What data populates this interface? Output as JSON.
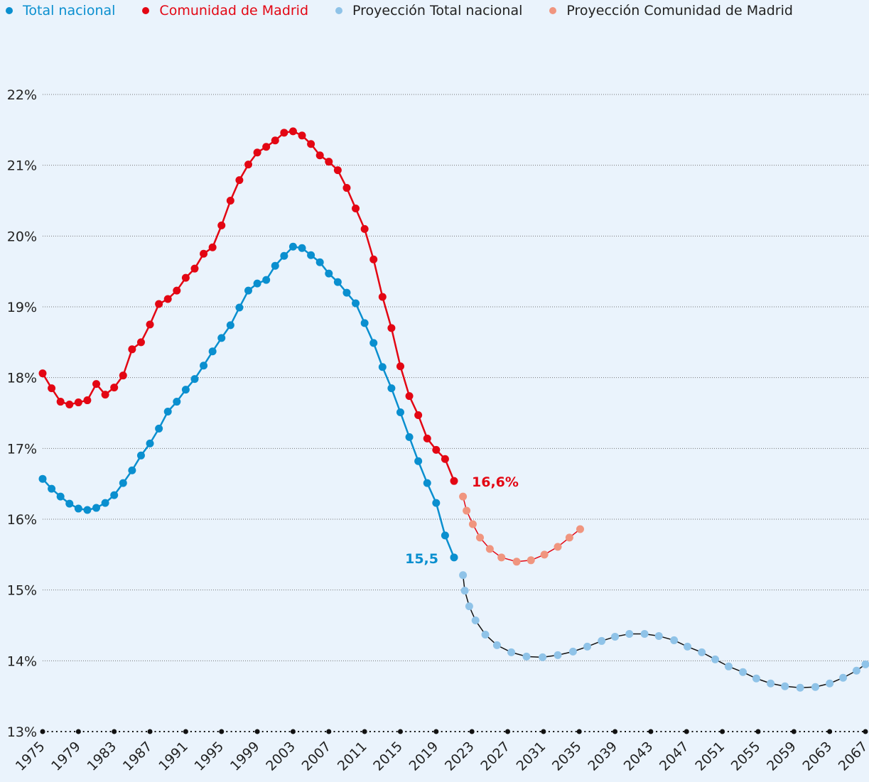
{
  "chart_data": {
    "type": "line",
    "xlim": [
      1975,
      2067
    ],
    "xticks": [
      1975,
      1979,
      1983,
      1987,
      1991,
      1995,
      1999,
      2003,
      2007,
      2011,
      2015,
      2019,
      2023,
      2027,
      2031,
      2035,
      2039,
      2043,
      2047,
      2051,
      2055,
      2059,
      2063,
      2067
    ],
    "ylim": [
      13,
      22
    ],
    "yticks": [
      {
        "value": 13,
        "label": "13%"
      },
      {
        "value": 14,
        "label": "14%"
      },
      {
        "value": 15,
        "label": "15%"
      },
      {
        "value": 16,
        "label": "16%"
      },
      {
        "value": 17,
        "label": "17%"
      },
      {
        "value": 18,
        "label": "18%"
      },
      {
        "value": 19,
        "label": "19%"
      },
      {
        "value": 20,
        "label": "20%"
      },
      {
        "value": 21,
        "label": "21%"
      },
      {
        "value": 22,
        "label": "22%"
      }
    ],
    "grid": true,
    "series": [
      {
        "name": "Total nacional",
        "color": "#0a8fcf",
        "line_color": "#0a8fcf",
        "legend_text_color": "#0a8fcf",
        "end_label": "15,5",
        "x": [
          1975,
          1976,
          1977,
          1978,
          1979,
          1980,
          1981,
          1982,
          1983,
          1984,
          1985,
          1986,
          1987,
          1988,
          1989,
          1990,
          1991,
          1992,
          1993,
          1994,
          1995,
          1996,
          1997,
          1998,
          1999,
          2000,
          2001,
          2002,
          2003,
          2004,
          2005,
          2006,
          2007,
          2008,
          2009,
          2010,
          2011,
          2012,
          2013,
          2014,
          2015,
          2016,
          2017,
          2018,
          2019,
          2020,
          2021
        ],
        "values": [
          16.57,
          16.43,
          16.32,
          16.22,
          16.15,
          16.13,
          16.16,
          16.23,
          16.34,
          16.51,
          16.69,
          16.9,
          17.07,
          17.28,
          17.52,
          17.66,
          17.83,
          17.98,
          18.17,
          18.37,
          18.56,
          18.74,
          18.99,
          19.23,
          19.33,
          19.38,
          19.58,
          19.72,
          19.85,
          19.83,
          19.73,
          19.63,
          19.47,
          19.35,
          19.2,
          19.05,
          18.77,
          18.49,
          18.15,
          17.85,
          17.51,
          17.16,
          16.82,
          16.51,
          16.23,
          15.77,
          15.46
        ]
      },
      {
        "name": "Comunidad de Madrid",
        "color": "#e30613",
        "line_color": "#e30613",
        "legend_text_color": "#e30613",
        "end_label": "16,6%",
        "x": [
          1975,
          1976,
          1977,
          1978,
          1979,
          1980,
          1981,
          1982,
          1983,
          1984,
          1985,
          1986,
          1987,
          1988,
          1989,
          1990,
          1991,
          1992,
          1993,
          1994,
          1995,
          1996,
          1997,
          1998,
          1999,
          2000,
          2001,
          2002,
          2003,
          2004,
          2005,
          2006,
          2007,
          2008,
          2009,
          2010,
          2011,
          2012,
          2013,
          2014,
          2015,
          2016,
          2017,
          2018,
          2019,
          2020,
          2021
        ],
        "values": [
          18.06,
          17.85,
          17.66,
          17.62,
          17.65,
          17.68,
          17.91,
          17.76,
          17.86,
          18.03,
          18.4,
          18.5,
          18.75,
          19.04,
          19.11,
          19.23,
          19.41,
          19.54,
          19.75,
          19.84,
          20.15,
          20.5,
          20.79,
          21.01,
          21.18,
          21.26,
          21.35,
          21.46,
          21.48,
          21.42,
          21.3,
          21.14,
          21.05,
          20.93,
          20.68,
          20.39,
          20.1,
          19.67,
          19.14,
          18.7,
          18.16,
          17.74,
          17.47,
          17.14,
          16.98,
          16.85,
          16.54
        ]
      },
      {
        "name": "Proyección Total nacional",
        "color": "#8fc3e8",
        "line_color": "#111111",
        "legend_text_color": "#222222",
        "x": [
          2022.0,
          2022.2,
          2022.7,
          2023.4,
          2024.5,
          2025.8,
          2027.4,
          2029.1,
          2030.9,
          2032.6,
          2034.3,
          2035.9,
          2037.5,
          2039.0,
          2040.6,
          2042.3,
          2043.9,
          2045.6,
          2047.1,
          2048.7,
          2050.2,
          2051.7,
          2053.3,
          2054.8,
          2056.4,
          2058.0,
          2059.7,
          2061.4,
          2063.0,
          2064.5,
          2066.0,
          2067.0
        ],
        "values": [
          15.21,
          14.99,
          14.77,
          14.57,
          14.37,
          14.22,
          14.12,
          14.06,
          14.05,
          14.08,
          14.13,
          14.2,
          14.28,
          14.34,
          14.38,
          14.38,
          14.35,
          14.29,
          14.2,
          14.12,
          14.02,
          13.92,
          13.84,
          13.75,
          13.68,
          13.64,
          13.62,
          13.63,
          13.68,
          13.76,
          13.86,
          13.95
        ]
      },
      {
        "name": "Proyección Comunidad de Madrid",
        "color": "#f0957f",
        "line_color": "#e30613",
        "legend_text_color": "#222222",
        "x": [
          2022.0,
          2022.4,
          2023.1,
          2023.9,
          2025.0,
          2026.3,
          2028.0,
          2029.6,
          2031.1,
          2032.6,
          2033.9,
          2035.1
        ],
        "values": [
          16.32,
          16.12,
          15.93,
          15.74,
          15.58,
          15.46,
          15.4,
          15.42,
          15.5,
          15.61,
          15.74,
          15.86
        ]
      }
    ]
  }
}
